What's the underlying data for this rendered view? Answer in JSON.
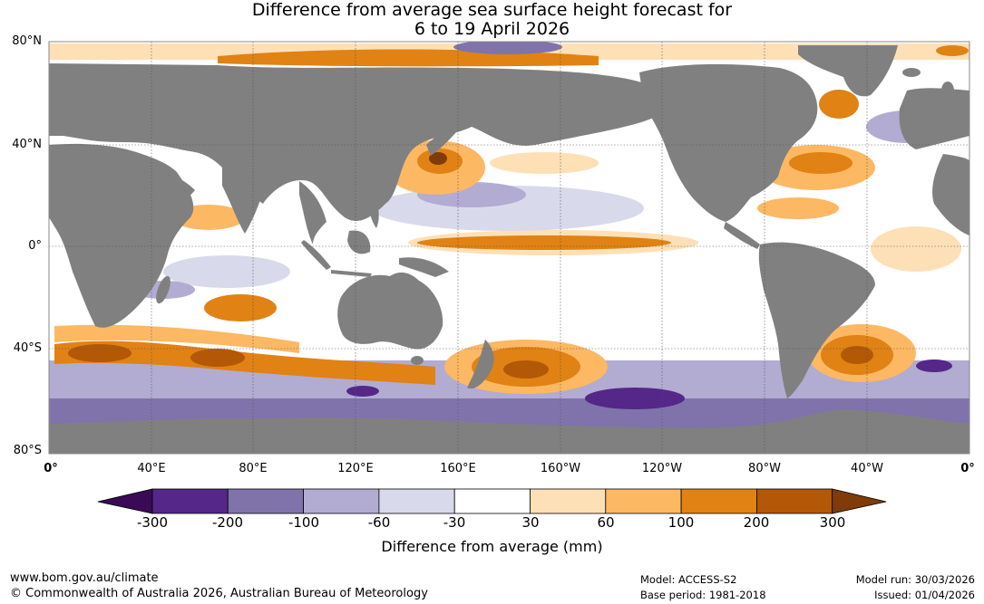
{
  "title": {
    "line1": "Difference from average sea surface height forecast for",
    "line2": "6 to 19 April 2026"
  },
  "map": {
    "lat_labels": [
      "80°N",
      "40°N",
      "0°",
      "40°S",
      "80°S"
    ],
    "lon_labels": [
      "0°",
      "40°E",
      "80°E",
      "120°E",
      "160°E",
      "160°W",
      "120°W",
      "80°W",
      "40°W",
      "0°"
    ],
    "land_color": "#808080",
    "ocean_color": "#ffffff"
  },
  "colorbar": {
    "colors": [
      "#3b0a57",
      "#542788",
      "#8073ac",
      "#b2abd2",
      "#d8daeb",
      "#ffffff",
      "#fee0b6",
      "#fdb863",
      "#e08214",
      "#b35806",
      "#7f3b08"
    ],
    "labels": [
      "-300",
      "-200",
      "-100",
      "-60",
      "-30",
      "30",
      "60",
      "100",
      "200",
      "300"
    ],
    "title": "Difference from average (mm)"
  },
  "footer": {
    "site": "www.bom.gov.au/climate",
    "copyright": "© Commonwealth of Australia 2026, Australian Bureau of Meteorology",
    "model": "Model: ACCESS-S2",
    "base_period": "Base period: 1981-2018",
    "model_run": "Model run: 30/03/2026",
    "issued": "Issued: 01/04/2026"
  }
}
